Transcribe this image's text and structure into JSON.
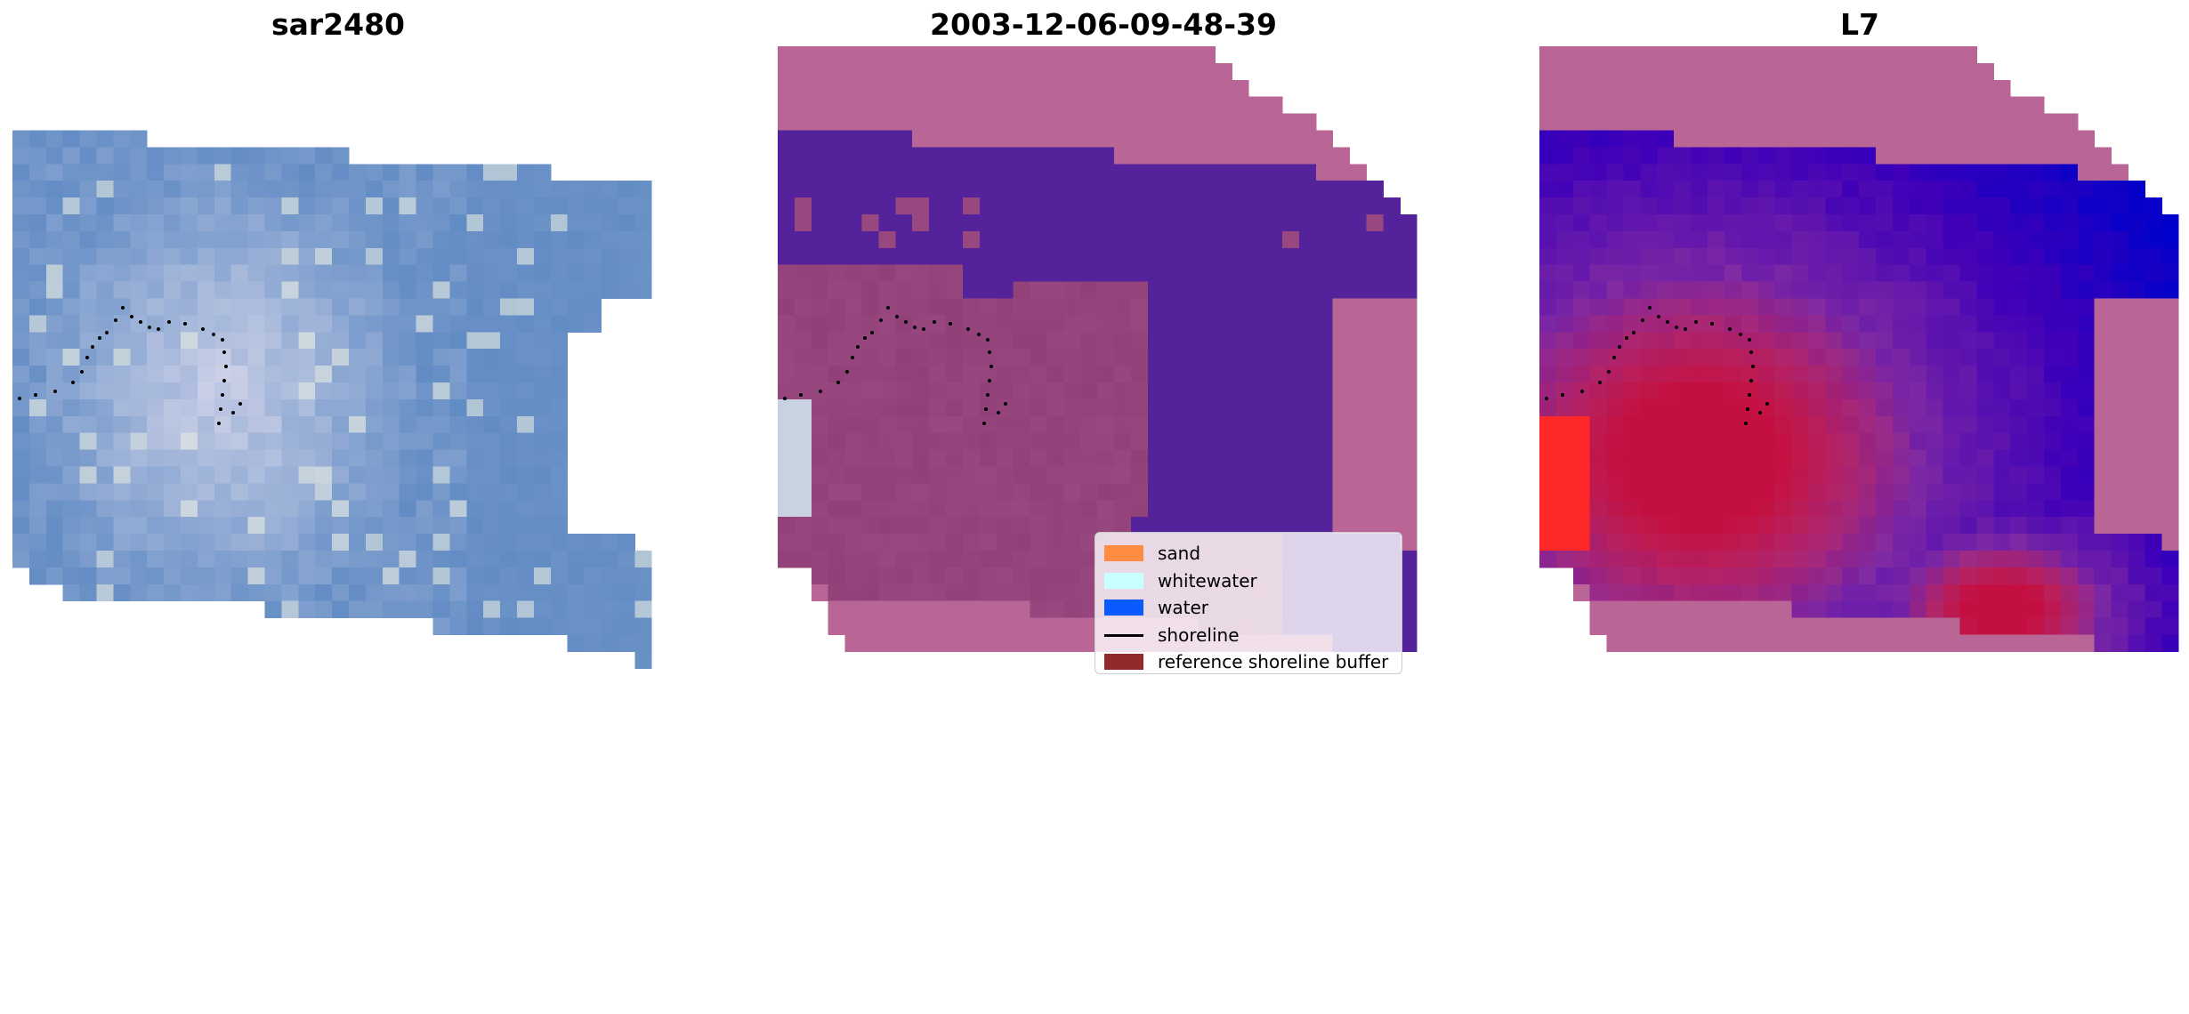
{
  "panels": [
    {
      "title": "sar2480"
    },
    {
      "title": "2003-12-06-09-48-39"
    },
    {
      "title": "L7"
    }
  ],
  "legend": {
    "items": [
      {
        "label": "sand",
        "color": "#ff8c40",
        "kind": "patch"
      },
      {
        "label": "whitewater",
        "color": "#c8ffff",
        "kind": "patch"
      },
      {
        "label": "water",
        "color": "#0a5aff",
        "kind": "patch"
      },
      {
        "label": "shoreline",
        "color": "#000000",
        "kind": "line"
      },
      {
        "label": "reference shoreline buffer",
        "color": "#932a2a",
        "kind": "patch"
      }
    ]
  },
  "colors": {
    "nodata_overlay": "#b96595",
    "water_class": "#54239c",
    "land_class": "#98487f",
    "rgb_base": "#7fa0cc",
    "l7_red": "#c41040",
    "l7_purple": "#7020a8"
  }
}
